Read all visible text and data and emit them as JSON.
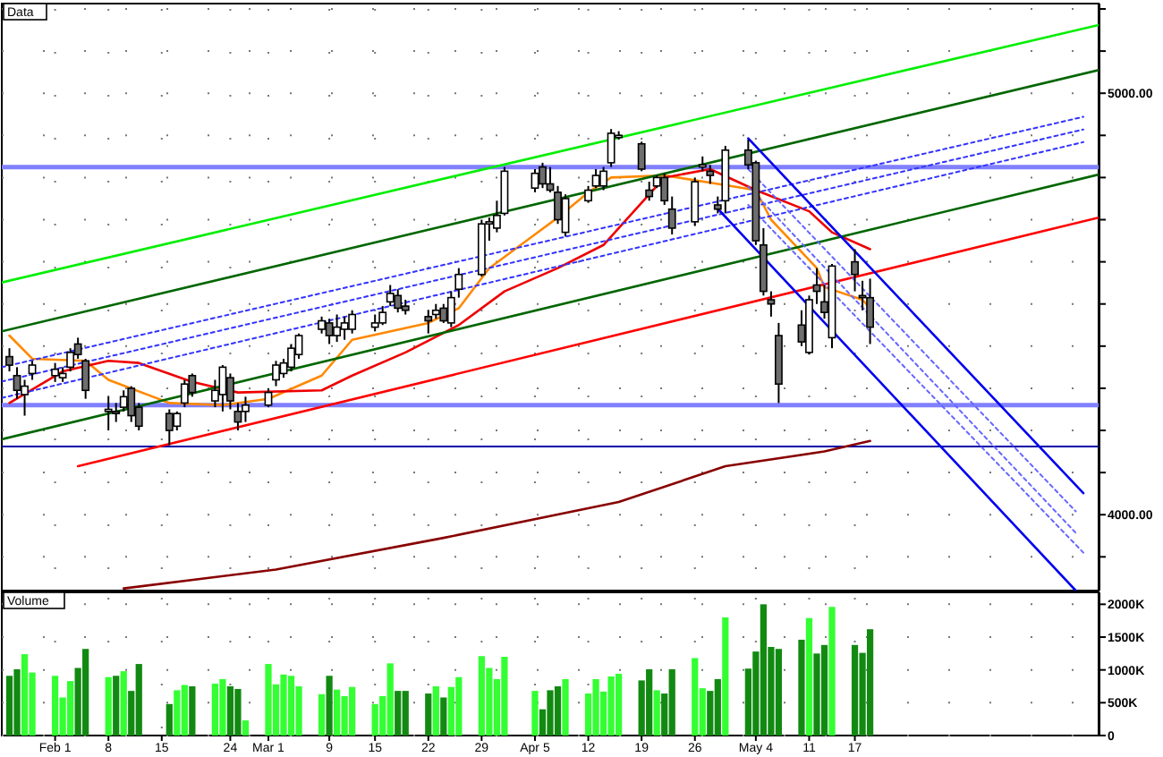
{
  "chart_data": [
    {
      "type": "candlestick",
      "title": "Data",
      "x": [
        "--01-26",
        "--01-27",
        "--01-28",
        "--01-29",
        "--02-01",
        "--02-02",
        "--02-03",
        "--02-04",
        "--02-05",
        "--02-08",
        "--02-09",
        "--02-10",
        "--02-11",
        "--02-12",
        "--02-16",
        "--02-17",
        "--02-18",
        "--02-19",
        "--02-22",
        "--02-23",
        "--02-24",
        "--02-25",
        "--02-26",
        "--03-01",
        "--03-02",
        "--03-03",
        "--03-04",
        "--03-05",
        "--03-08",
        "--03-09",
        "--03-10",
        "--03-11",
        "--03-12",
        "--03-15",
        "--03-16",
        "--03-17",
        "--03-18",
        "--03-19",
        "--03-22",
        "--03-23",
        "--03-24",
        "--03-25",
        "--03-26",
        "--03-29",
        "--03-30",
        "--03-31",
        "--04-01",
        "--04-05",
        "--04-06",
        "--04-07",
        "--04-08",
        "--04-09",
        "--04-12",
        "--04-13",
        "--04-14",
        "--04-15",
        "--04-16",
        "--04-19",
        "--04-20",
        "--04-21",
        "--04-22",
        "--04-23",
        "--04-26",
        "--04-27",
        "--04-28",
        "--04-29",
        "--04-30",
        "--05-03",
        "--05-04",
        "--05-05",
        "--05-06",
        "--05-07",
        "--05-10",
        "--05-11",
        "--05-12",
        "--05-13",
        "--05-14",
        "--05-17",
        "--05-18",
        "--05-19"
      ],
      "ohlc": [
        [
          4375,
          4395,
          4340,
          4355
        ],
        [
          4330,
          4350,
          4275,
          4295
        ],
        [
          4285,
          4320,
          4235,
          4305
        ],
        [
          4335,
          4365,
          4320,
          4355
        ],
        [
          4330,
          4360,
          4315,
          4345
        ],
        [
          4325,
          4350,
          4315,
          4335
        ],
        [
          4350,
          4395,
          4340,
          4385
        ],
        [
          4405,
          4420,
          4370,
          4380
        ],
        [
          4365,
          4370,
          4275,
          4295
        ],
        [
          4245,
          4280,
          4200,
          4250
        ],
        [
          4245,
          4265,
          4220,
          4240
        ],
        [
          4255,
          4295,
          4245,
          4280
        ],
        [
          4300,
          4305,
          4220,
          4235
        ],
        [
          4255,
          4265,
          4200,
          4210
        ],
        [
          4240,
          4250,
          4165,
          4200
        ],
        [
          4210,
          4245,
          4200,
          4240
        ],
        [
          4265,
          4320,
          4255,
          4310
        ],
        [
          4330,
          4335,
          4280,
          4290
        ],
        [
          4270,
          4320,
          4255,
          4295
        ],
        [
          4285,
          4355,
          4245,
          4350
        ],
        [
          4325,
          4335,
          4250,
          4270
        ],
        [
          4245,
          4265,
          4200,
          4220
        ],
        [
          4245,
          4280,
          4220,
          4260
        ],
        [
          4260,
          4300,
          4255,
          4290
        ],
        [
          4320,
          4365,
          4305,
          4355
        ],
        [
          4335,
          4370,
          4325,
          4360
        ],
        [
          4350,
          4405,
          4340,
          4395
        ],
        [
          4380,
          4430,
          4370,
          4425
        ],
        [
          4440,
          4470,
          4430,
          4460
        ],
        [
          4455,
          4465,
          4405,
          4425
        ],
        [
          4425,
          4475,
          4410,
          4445
        ],
        [
          4440,
          4470,
          4415,
          4455
        ],
        [
          4440,
          4485,
          4430,
          4475
        ],
        [
          4445,
          4475,
          4435,
          4455
        ],
        [
          4455,
          4495,
          4450,
          4480
        ],
        [
          4505,
          4545,
          4495,
          4525
        ],
        [
          4520,
          4535,
          4480,
          4490
        ],
        [
          4495,
          4510,
          4475,
          4485
        ],
        [
          4470,
          4485,
          4430,
          4460
        ],
        [
          4475,
          4500,
          4465,
          4485
        ],
        [
          4490,
          4500,
          4455,
          4460
        ],
        [
          4455,
          4530,
          4445,
          4515
        ],
        [
          4535,
          4585,
          4515,
          4570
        ],
        [
          4570,
          4700,
          4565,
          4690
        ],
        [
          4690,
          4705,
          4650,
          4695
        ],
        [
          4680,
          4745,
          4670,
          4710
        ],
        [
          4715,
          4825,
          4710,
          4815
        ],
        [
          4775,
          4820,
          4765,
          4810
        ],
        [
          4825,
          4835,
          4775,
          4785
        ],
        [
          4785,
          4825,
          4765,
          4770
        ],
        [
          4765,
          4780,
          4690,
          4700
        ],
        [
          4670,
          4760,
          4660,
          4750
        ],
        [
          4745,
          4780,
          4740,
          4770
        ],
        [
          4780,
          4820,
          4775,
          4805
        ],
        [
          4780,
          4825,
          4770,
          4815
        ],
        [
          4835,
          4915,
          4825,
          4905
        ],
        [
          4895,
          4910,
          4890,
          4900
        ],
        [
          4880,
          4885,
          4815,
          4820
        ],
        [
          4770,
          4790,
          4745,
          4755
        ],
        [
          4780,
          4805,
          4775,
          4800
        ],
        [
          4800,
          4810,
          4735,
          4745
        ],
        [
          4725,
          4755,
          4665,
          4680
        ],
        [
          4695,
          4800,
          4685,
          4790
        ],
        [
          4825,
          4850,
          4815,
          4830
        ],
        [
          4815,
          4830,
          4785,
          4805
        ],
        [
          4735,
          4755,
          4715,
          4725
        ],
        [
          4745,
          4875,
          4715,
          4865
        ],
        [
          4865,
          4890,
          4820,
          4830
        ],
        [
          4835,
          4840,
          4640,
          4650
        ],
        [
          4640,
          4680,
          4520,
          4530
        ],
        [
          4510,
          4530,
          4470,
          4500
        ],
        [
          4425,
          4455,
          4265,
          4310
        ],
        [
          4450,
          4485,
          4400,
          4410
        ],
        [
          4385,
          4520,
          4380,
          4510
        ],
        [
          4545,
          4585,
          4500,
          4530
        ],
        [
          4505,
          4545,
          4465,
          4480
        ],
        [
          4420,
          4595,
          4395,
          4590
        ],
        [
          4600,
          4630,
          4530,
          4570
        ],
        [
          4520,
          4555,
          4485,
          4515
        ],
        [
          4515,
          4560,
          4405,
          4445
        ]
      ],
      "series": [
        {
          "type": "line",
          "color": "#ff8800",
          "x": [
            "--01-26",
            "--01-29",
            "--02-05",
            "--02-08",
            "--02-16",
            "--02-23",
            "--03-01",
            "--03-08",
            "--03-12",
            "--03-22",
            "--03-26",
            "--03-30",
            "--04-05",
            "--04-08",
            "--04-12",
            "--04-15",
            "--04-22",
            "--04-29",
            "--05-04",
            "--05-06",
            "--05-12",
            "--05-13",
            "--05-18",
            "--05-19"
          ],
          "values": [
            4425,
            4370,
            4365,
            4320,
            4265,
            4260,
            4275,
            4330,
            4415,
            4455,
            4490,
            4585,
            4665,
            4705,
            4765,
            4800,
            4805,
            4785,
            4770,
            4700,
            4585,
            4540,
            4510,
            4490
          ]
        },
        {
          "type": "line",
          "color": "#ee0000",
          "x": [
            "--01-26",
            "--02-02",
            "--02-08",
            "--02-12",
            "--02-19",
            "--02-25",
            "--03-08",
            "--03-12",
            "--03-19",
            "--03-26",
            "--04-01",
            "--04-08",
            "--04-14",
            "--04-22",
            "--04-28",
            "--05-04",
            "--05-11",
            "--05-14",
            "--05-19"
          ],
          "values": [
            4265,
            4340,
            4365,
            4360,
            4315,
            4290,
            4295,
            4330,
            4385,
            4450,
            4530,
            4585,
            4640,
            4800,
            4820,
            4770,
            4720,
            4670,
            4630
          ]
        },
        {
          "type": "line",
          "color": "#880000",
          "x": [
            "--02-10",
            "--03-02",
            "--03-24",
            "--04-16",
            "--04-30",
            "--05-13",
            "--05-19"
          ],
          "values": [
            3825,
            3870,
            3945,
            4030,
            4115,
            4150,
            4175
          ]
        },
        {
          "type": "line",
          "color": "#00ee00",
          "x": [
            "--01-25",
            "--06-18"
          ],
          "values": [
            4551,
            5162
          ]
        },
        {
          "type": "line",
          "color": "#006600",
          "x": [
            "--01-25",
            "--06-18"
          ],
          "values": [
            4435,
            5055
          ]
        },
        {
          "type": "line",
          "color": "#006600",
          "x": [
            "--01-25",
            "--06-18"
          ],
          "values": [
            4179,
            4807
          ]
        },
        {
          "type": "line",
          "color": "#ff0000",
          "x": [
            "--02-04",
            "--06-18"
          ],
          "values": [
            4115,
            4705
          ]
        },
        {
          "type": "line",
          "color": "#3333ff",
          "line_style": "dotted",
          "x": [
            "--01-25",
            "--06-16"
          ],
          "values": [
            4350,
            4944
          ]
        },
        {
          "type": "line",
          "color": "#3333ff",
          "line_style": "dotted",
          "x": [
            "--01-25",
            "--06-16"
          ],
          "values": [
            4316,
            4914
          ]
        },
        {
          "type": "line",
          "color": "#3333ff",
          "line_style": "dotted",
          "x": [
            "--01-25",
            "--06-16"
          ],
          "values": [
            4277,
            4884
          ]
        },
        {
          "type": "line",
          "color": "#0000ee",
          "x": [
            "--05-03",
            "--06-16"
          ],
          "values": [
            4893,
            4051
          ]
        },
        {
          "type": "line",
          "color": "#0000ee",
          "x": [
            "--04-29",
            "--06-15"
          ],
          "values": [
            4726,
            3820
          ]
        },
        {
          "type": "line",
          "color": "#6666ff",
          "line_style": "dotted",
          "x": [
            "--05-03",
            "--06-15"
          ],
          "values": [
            4820,
            4008
          ]
        },
        {
          "type": "line",
          "color": "#6666ff",
          "line_style": "dotted",
          "x": [
            "--05-03",
            "--06-15"
          ],
          "values": [
            4778,
            3957
          ]
        },
        {
          "type": "line",
          "color": "#6666ff",
          "line_style": "dotted",
          "x": [
            "--05-03",
            "--06-16"
          ],
          "values": [
            4735,
            3910
          ]
        }
      ],
      "ref_lines": [
        {
          "axis": "y",
          "value": 4825,
          "color": "#8080ff"
        },
        {
          "axis": "y",
          "value": 4260,
          "color": "#8080ff"
        },
        {
          "axis": "y",
          "value": 4162,
          "color": "#0000aa"
        }
      ],
      "xlim": [
        "--01-25",
        "--06-18"
      ],
      "xticks": [
        {
          "value": "--02-01",
          "label": null
        },
        {
          "value": "--02-08",
          "label": null
        },
        {
          "value": "--02-15",
          "label": null
        },
        {
          "value": "--02-24",
          "label": null
        },
        {
          "value": "--03-01",
          "label": null
        },
        {
          "value": "--03-09",
          "label": null
        },
        {
          "value": "--03-15",
          "label": null
        },
        {
          "value": "--03-22",
          "label": null
        },
        {
          "value": "--03-29",
          "label": null
        },
        {
          "value": "--04-05",
          "label": null
        },
        {
          "value": "--04-12",
          "label": null
        },
        {
          "value": "--04-19",
          "label": null
        },
        {
          "value": "--04-26",
          "label": null
        },
        {
          "value": "--05-04",
          "label": null
        },
        {
          "value": "--05-11",
          "label": null
        },
        {
          "value": "--05-17",
          "label": null
        }
      ],
      "ylim": [
        3820,
        5200
      ],
      "yticks": [
        {
          "value": 3900,
          "label": null
        },
        {
          "value": 4000,
          "label": "4000.00"
        },
        {
          "value": 4100,
          "label": null
        },
        {
          "value": 4200,
          "label": null
        },
        {
          "value": 4300,
          "label": null
        },
        {
          "value": 4400,
          "label": null
        },
        {
          "value": 4500,
          "label": null
        },
        {
          "value": 4600,
          "label": null
        },
        {
          "value": 4700,
          "label": null
        },
        {
          "value": 4800,
          "label": null
        },
        {
          "value": 4900,
          "label": null
        },
        {
          "value": 5000,
          "label": "5000.00"
        },
        {
          "value": 5100,
          "label": null
        },
        {
          "value": 5200,
          "label": null
        }
      ],
      "grid": true,
      "tick_labels": "y"
    },
    {
      "type": "bar",
      "title": "Volume",
      "x": [
        "--01-26",
        "--01-27",
        "--01-28",
        "--01-29",
        "--02-01",
        "--02-02",
        "--02-03",
        "--02-04",
        "--02-05",
        "--02-08",
        "--02-09",
        "--02-10",
        "--02-11",
        "--02-12",
        "--02-16",
        "--02-17",
        "--02-18",
        "--02-19",
        "--02-22",
        "--02-23",
        "--02-24",
        "--02-25",
        "--02-26",
        "--03-01",
        "--03-02",
        "--03-03",
        "--03-04",
        "--03-05",
        "--03-08",
        "--03-09",
        "--03-10",
        "--03-11",
        "--03-12",
        "--03-15",
        "--03-16",
        "--03-17",
        "--03-18",
        "--03-19",
        "--03-22",
        "--03-23",
        "--03-24",
        "--03-25",
        "--03-26",
        "--03-29",
        "--03-30",
        "--03-31",
        "--04-01",
        "--04-05",
        "--04-06",
        "--04-07",
        "--04-08",
        "--04-09",
        "--04-12",
        "--04-13",
        "--04-14",
        "--04-15",
        "--04-16",
        "--04-19",
        "--04-20",
        "--04-21",
        "--04-22",
        "--04-23",
        "--04-26",
        "--04-27",
        "--04-28",
        "--04-29",
        "--04-30",
        "--05-03",
        "--05-04",
        "--05-05",
        "--05-06",
        "--05-07",
        "--05-10",
        "--05-11",
        "--05-12",
        "--05-13",
        "--05-14",
        "--05-17",
        "--05-18",
        "--05-19"
      ],
      "values": [
        910,
        1010,
        1240,
        960,
        910,
        580,
        830,
        1030,
        1320,
        890,
        910,
        980,
        680,
        1090,
        480,
        690,
        770,
        750,
        790,
        860,
        750,
        710,
        230,
        1090,
        780,
        930,
        910,
        750,
        630,
        910,
        700,
        600,
        740,
        480,
        600,
        1100,
        680,
        680,
        640,
        750,
        580,
        740,
        890,
        1210,
        1030,
        860,
        1200,
        680,
        400,
        690,
        750,
        860,
        640,
        860,
        670,
        900,
        940,
        840,
        1010,
        690,
        640,
        1010,
        1180,
        720,
        680,
        860,
        1800,
        1020,
        1280,
        2000,
        1350,
        1320,
        1460,
        1790,
        1250,
        1380,
        1960,
        1380,
        1260,
        1620
      ],
      "colors": [
        "#128a12",
        "#128a12",
        "#33ff33",
        "#33ff33",
        "#33ff33",
        "#33ff33",
        "#33ff33",
        "#128a12",
        "#128a12",
        "#33ff33",
        "#128a12",
        "#33ff33",
        "#128a12",
        "#128a12",
        "#128a12",
        "#33ff33",
        "#33ff33",
        "#128a12",
        "#33ff33",
        "#33ff33",
        "#128a12",
        "#128a12",
        "#33ff33",
        "#33ff33",
        "#33ff33",
        "#33ff33",
        "#33ff33",
        "#33ff33",
        "#33ff33",
        "#128a12",
        "#33ff33",
        "#33ff33",
        "#33ff33",
        "#33ff33",
        "#33ff33",
        "#33ff33",
        "#128a12",
        "#128a12",
        "#128a12",
        "#33ff33",
        "#128a12",
        "#33ff33",
        "#33ff33",
        "#33ff33",
        "#33ff33",
        "#33ff33",
        "#33ff33",
        "#33ff33",
        "#128a12",
        "#128a12",
        "#128a12",
        "#33ff33",
        "#33ff33",
        "#33ff33",
        "#33ff33",
        "#33ff33",
        "#33ff33",
        "#128a12",
        "#128a12",
        "#33ff33",
        "#128a12",
        "#128a12",
        "#33ff33",
        "#33ff33",
        "#128a12",
        "#128a12",
        "#33ff33",
        "#128a12",
        "#128a12",
        "#128a12",
        "#128a12",
        "#128a12",
        "#128a12",
        "#33ff33",
        "#128a12",
        "#128a12",
        "#33ff33",
        "#128a12",
        "#128a12",
        "#128a12"
      ],
      "xlim": [
        "--01-25",
        "--06-18"
      ],
      "xticks": [
        {
          "value": "--02-01",
          "label": "Feb 1"
        },
        {
          "value": "--02-08",
          "label": "8"
        },
        {
          "value": "--02-15",
          "label": "15"
        },
        {
          "value": "--02-24",
          "label": "24"
        },
        {
          "value": "--03-01",
          "label": "Mar 1"
        },
        {
          "value": "--03-09",
          "label": "9"
        },
        {
          "value": "--03-15",
          "label": "15"
        },
        {
          "value": "--03-22",
          "label": "22"
        },
        {
          "value": "--03-29",
          "label": "29"
        },
        {
          "value": "--04-05",
          "label": "Apr 5"
        },
        {
          "value": "--04-12",
          "label": "12"
        },
        {
          "value": "--04-19",
          "label": "19"
        },
        {
          "value": "--04-26",
          "label": "26"
        },
        {
          "value": "--05-04",
          "label": "May 4"
        },
        {
          "value": "--05-11",
          "label": "11"
        },
        {
          "value": "--05-17",
          "label": "17"
        }
      ],
      "ylim": [
        0,
        2100
      ],
      "yticks": [
        {
          "value": 0,
          "label": "0"
        },
        {
          "value": 500,
          "label": "500K"
        },
        {
          "value": 1000,
          "label": "1000K"
        },
        {
          "value": 1500,
          "label": "1500K"
        },
        {
          "value": 2000,
          "label": "2000K"
        }
      ],
      "grid": true
    }
  ]
}
